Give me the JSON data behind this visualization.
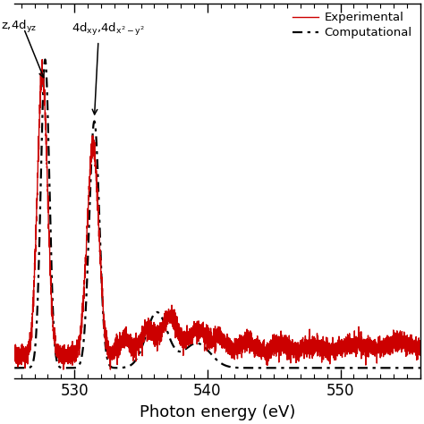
{
  "x_min": 525.5,
  "x_max": 556.0,
  "x_ticks": [
    530,
    540,
    550
  ],
  "xlabel": "Photon energy (eV)",
  "exp_color": "#cc0000",
  "comp_color": "#000000",
  "y_min": -0.03,
  "y_max": 1.18,
  "figsize": [
    4.74,
    4.74
  ],
  "dpi": 100
}
